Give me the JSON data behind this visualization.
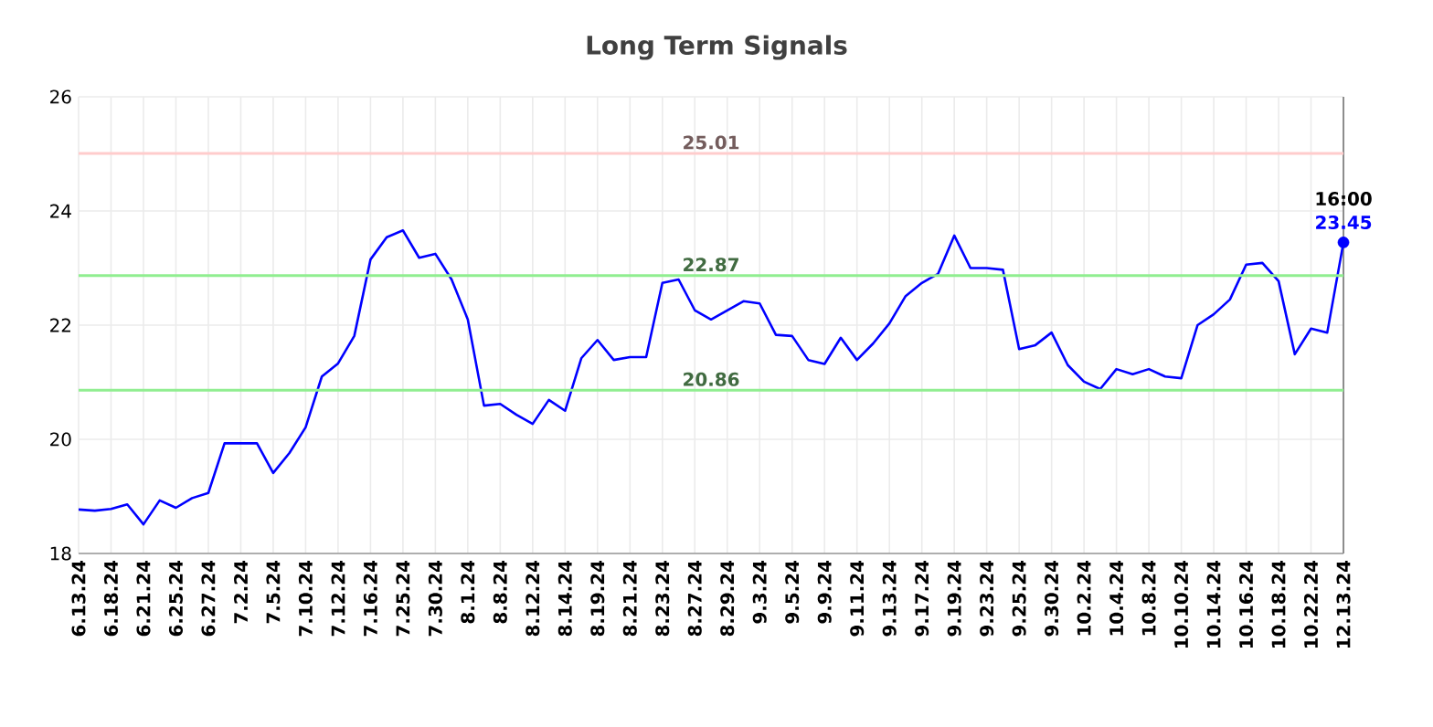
{
  "chart_data": {
    "type": "line",
    "title": "Long Term Signals",
    "categories": [
      "6.13.24",
      null,
      "6.18.24",
      null,
      "6.21.24",
      null,
      "6.25.24",
      null,
      "6.27.24",
      null,
      "7.2.24",
      null,
      "7.5.24",
      null,
      "7.10.24",
      null,
      "7.12.24",
      null,
      "7.16.24",
      null,
      "7.25.24",
      null,
      "7.30.24",
      null,
      "8.1.24",
      null,
      "8.8.24",
      null,
      "8.12.24",
      null,
      "8.14.24",
      null,
      "8.19.24",
      null,
      "8.21.24",
      null,
      "8.23.24",
      null,
      "8.27.24",
      null,
      "8.29.24",
      null,
      "9.3.24",
      null,
      "9.5.24",
      null,
      "9.9.24",
      null,
      "9.11.24",
      null,
      "9.13.24",
      null,
      "9.17.24",
      null,
      "9.19.24",
      null,
      "9.23.24",
      null,
      "9.25.24",
      null,
      "9.30.24",
      null,
      "10.2.24",
      null,
      "10.4.24",
      null,
      "10.8.24",
      null,
      "10.10.24",
      null,
      "10.14.24",
      null,
      "10.16.24",
      null,
      "10.18.24",
      null,
      "10.22.24",
      null,
      "12.13.24"
    ],
    "series": [
      {
        "color": "#0000ff",
        "values": [
          18.77,
          18.75,
          18.78,
          18.86,
          18.51,
          18.93,
          18.8,
          18.97,
          19.06,
          19.93,
          19.93,
          19.93,
          19.41,
          19.76,
          20.21,
          21.1,
          21.33,
          21.81,
          23.15,
          23.54,
          23.66,
          23.18,
          23.25,
          22.8,
          22.1,
          20.59,
          20.62,
          20.43,
          20.27,
          20.69,
          20.5,
          21.42,
          21.74,
          21.39,
          21.44,
          21.44,
          22.74,
          22.8,
          22.26,
          22.1,
          22.26,
          22.42,
          22.38,
          21.83,
          21.81,
          21.39,
          21.32,
          21.78,
          21.39,
          21.68,
          22.03,
          22.51,
          22.74,
          22.9,
          23.57,
          23.0,
          23.0,
          22.97,
          21.58,
          21.65,
          21.87,
          21.3,
          21.01,
          20.88,
          21.23,
          21.14,
          21.23,
          21.1,
          21.07,
          22.0,
          22.19,
          22.45,
          23.06,
          23.09,
          22.77,
          21.49,
          21.94,
          21.87,
          23.45
        ]
      },
      {
        "type": "scatter",
        "color": "#0000ff",
        "marker": "circle",
        "x": [
          "12.13.24"
        ],
        "values": [
          23.45
        ],
        "value_labels": [
          "23.45"
        ]
      }
    ],
    "ylim": [
      18,
      26
    ],
    "yticks": [
      18,
      20,
      22,
      24,
      26
    ],
    "grid": true,
    "marker": "none",
    "line_style": "solid",
    "ref_lines": [
      {
        "axis": "y",
        "value": 25.01,
        "label": "25.01",
        "color": "#ffcccc"
      },
      {
        "axis": "y",
        "value": 22.87,
        "label": "22.87",
        "color": "#90ee90"
      },
      {
        "axis": "y",
        "value": 20.86,
        "label": "20.86",
        "color": "#90ee90"
      }
    ],
    "annotations": [
      {
        "text": "16:00",
        "x": "12.13.24",
        "y": 23.45
      }
    ]
  }
}
